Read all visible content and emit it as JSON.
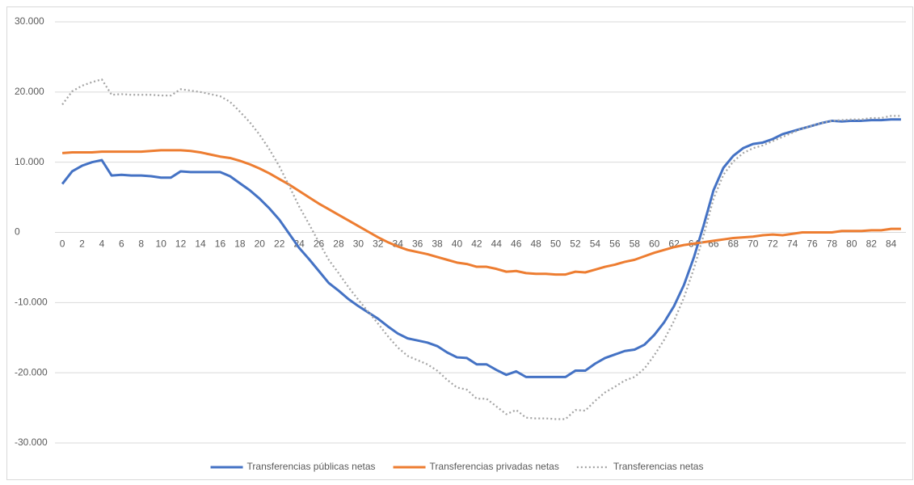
{
  "chart_data": {
    "type": "line",
    "categories": [
      0,
      null,
      2,
      null,
      4,
      null,
      6,
      null,
      8,
      null,
      10,
      null,
      12,
      null,
      14,
      null,
      16,
      null,
      18,
      null,
      20,
      null,
      22,
      null,
      24,
      null,
      26,
      null,
      28,
      null,
      30,
      null,
      32,
      null,
      34,
      null,
      36,
      null,
      38,
      null,
      40,
      null,
      42,
      null,
      44,
      null,
      46,
      null,
      48,
      null,
      50,
      null,
      52,
      null,
      54,
      null,
      56,
      null,
      58,
      null,
      60,
      null,
      62,
      null,
      64,
      null,
      66,
      null,
      68,
      null,
      70,
      null,
      72,
      null,
      74,
      null,
      76,
      null,
      78,
      null,
      80,
      null,
      82,
      null,
      84,
      null
    ],
    "series": [
      {
        "name": "Transferencias públicas netas",
        "color": "#4472c4",
        "style": "solid",
        "values": [
          6900,
          8700,
          9500,
          10000,
          10300,
          8100,
          8200,
          8100,
          8100,
          8000,
          7800,
          7800,
          8700,
          8600,
          8600,
          8600,
          8600,
          8000,
          7000,
          6000,
          4800,
          3400,
          1800,
          -200,
          -2200,
          -3800,
          -5500,
          -7200,
          -8300,
          -9500,
          -10500,
          -11400,
          -12300,
          -13400,
          -14400,
          -15100,
          -15400,
          -15700,
          -16200,
          -17100,
          -17800,
          -17900,
          -18800,
          -18800,
          -19600,
          -20300,
          -19800,
          -20600,
          -20600,
          -20600,
          -20600,
          -20600,
          -19700,
          -19700,
          -18700,
          -17900,
          -17400,
          -16900,
          -16700,
          -16000,
          -14600,
          -12800,
          -10500,
          -7500,
          -3600,
          1000,
          6000,
          9200,
          10900,
          12000,
          12600,
          12800,
          13300,
          14000,
          14400,
          14800,
          15200,
          15600,
          15900,
          15800,
          15900,
          15900,
          16000,
          16000,
          16100,
          16100
        ]
      },
      {
        "name": "Transferencias privadas netas",
        "color": "#ed7d31",
        "style": "solid",
        "values": [
          11300,
          11400,
          11400,
          11400,
          11500,
          11500,
          11500,
          11500,
          11500,
          11600,
          11700,
          11700,
          11700,
          11600,
          11400,
          11100,
          10800,
          10600,
          10200,
          9700,
          9100,
          8400,
          7600,
          6800,
          5900,
          5000,
          4100,
          3300,
          2500,
          1700,
          900,
          100,
          -700,
          -1400,
          -2000,
          -2500,
          -2800,
          -3100,
          -3500,
          -3900,
          -4300,
          -4500,
          -4900,
          -4900,
          -5200,
          -5600,
          -5500,
          -5800,
          -5900,
          -5900,
          -6000,
          -6000,
          -5600,
          -5700,
          -5300,
          -4900,
          -4600,
          -4200,
          -3900,
          -3400,
          -2900,
          -2500,
          -2100,
          -1800,
          -1600,
          -1400,
          -1200,
          -1000,
          -800,
          -700,
          -600,
          -400,
          -300,
          -400,
          -200,
          0,
          0,
          0,
          0,
          200,
          200,
          200,
          300,
          300,
          500,
          500
        ]
      },
      {
        "name": "Transferencias netas",
        "color": "#a5a5a5",
        "style": "dotted",
        "values": [
          18200,
          20100,
          20900,
          21400,
          21800,
          19600,
          19700,
          19600,
          19600,
          19600,
          19500,
          19500,
          20400,
          20200,
          20000,
          19700,
          19400,
          18600,
          17200,
          15700,
          13900,
          11800,
          9400,
          6600,
          3700,
          1200,
          -1400,
          -3900,
          -5800,
          -7800,
          -9600,
          -11300,
          -13000,
          -14800,
          -16400,
          -17600,
          -18200,
          -18800,
          -19700,
          -21000,
          -22100,
          -22400,
          -23700,
          -23700,
          -24800,
          -25900,
          -25300,
          -26400,
          -26500,
          -26500,
          -26600,
          -26600,
          -25300,
          -25400,
          -24000,
          -22800,
          -22000,
          -21100,
          -20600,
          -19400,
          -17500,
          -15300,
          -12600,
          -9300,
          -5200,
          -400,
          4800,
          8200,
          10100,
          11300,
          12000,
          12400,
          13000,
          13600,
          14200,
          14800,
          15200,
          15600,
          15900,
          16000,
          16100,
          16100,
          16300,
          16300,
          16600,
          16600
        ]
      }
    ],
    "ylim": [
      -30000,
      30000
    ],
    "yticks": [
      {
        "value": -30000,
        "label": "-30.000"
      },
      {
        "value": -20000,
        "label": "-20.000"
      },
      {
        "value": -10000,
        "label": "-10.000"
      },
      0,
      {
        "value": 10000,
        "label": "10.000"
      },
      {
        "value": 20000,
        "label": "20.000"
      },
      {
        "value": 30000,
        "label": "30.000"
      }
    ],
    "grid": true,
    "legend": "bottom"
  }
}
